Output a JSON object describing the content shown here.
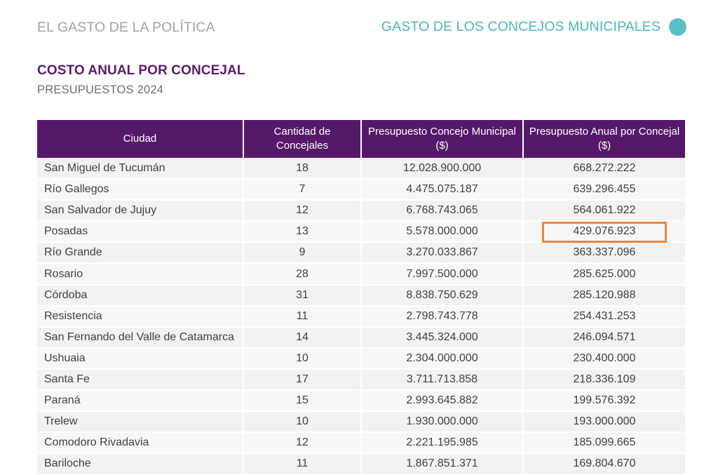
{
  "header": {
    "left_title": "EL GASTO DE LA POLÍTICA",
    "right_title": "GASTO DE LOS CONCEJOS MUNICIPALES",
    "dot_color": "#58bfc6"
  },
  "title": "COSTO ANUAL POR CONCEJAL",
  "subtitle": "PRESUPUESTOS 2024",
  "table": {
    "header_color": "#56196a",
    "highlight_color": "#e9873a",
    "columns": [
      "Ciudad",
      "Cantidad de Concejales",
      "Presupuesto Concejo Municipal ($)",
      "Presupuesto Anual por Concejal ($)"
    ],
    "rows": [
      {
        "city": "San Miguel de Tucumán",
        "councilors": "18",
        "budget": "12.028.900.000",
        "per_councilor": "668.272.222"
      },
      {
        "city": "Río Gallegos",
        "councilors": "7",
        "budget": "4.475.075.187",
        "per_councilor": "639.296.455"
      },
      {
        "city": "San Salvador de Jujuy",
        "councilors": "12",
        "budget": "6.768.743.065",
        "per_councilor": "564.061.922"
      },
      {
        "city": "Posadas",
        "councilors": "13",
        "budget": "5.578.000.000",
        "per_councilor": "429.076.923",
        "highlighted": true
      },
      {
        "city": "Río Grande",
        "councilors": "9",
        "budget": "3.270.033.867",
        "per_councilor": "363.337.096"
      },
      {
        "city": "Rosario",
        "councilors": "28",
        "budget": "7.997.500.000",
        "per_councilor": "285.625.000"
      },
      {
        "city": "Córdoba",
        "councilors": "31",
        "budget": "8.838.750.629",
        "per_councilor": "285.120.988"
      },
      {
        "city": "Resistencia",
        "councilors": "11",
        "budget": "2.798.743.778",
        "per_councilor": "254.431.253"
      },
      {
        "city": "San Fernando del Valle de Catamarca",
        "councilors": "14",
        "budget": "3.445.324.000",
        "per_councilor": "246.094.571"
      },
      {
        "city": "Ushuaia",
        "councilors": "10",
        "budget": "2.304.000.000",
        "per_councilor": "230.400.000"
      },
      {
        "city": "Santa Fe",
        "councilors": "17",
        "budget": "3.711.713.858",
        "per_councilor": "218.336.109"
      },
      {
        "city": "Paraná",
        "councilors": "15",
        "budget": "2.993.645.882",
        "per_councilor": "199.576.392"
      },
      {
        "city": "Trelew",
        "councilors": "10",
        "budget": "1.930.000.000",
        "per_councilor": "193.000.000"
      },
      {
        "city": "Comodoro Rivadavia",
        "councilors": "12",
        "budget": "2.221.195.985",
        "per_councilor": "185.099.665"
      },
      {
        "city": "Bariloche",
        "councilors": "11",
        "budget": "1.867.851.371",
        "per_councilor": "169.804.670"
      }
    ]
  }
}
